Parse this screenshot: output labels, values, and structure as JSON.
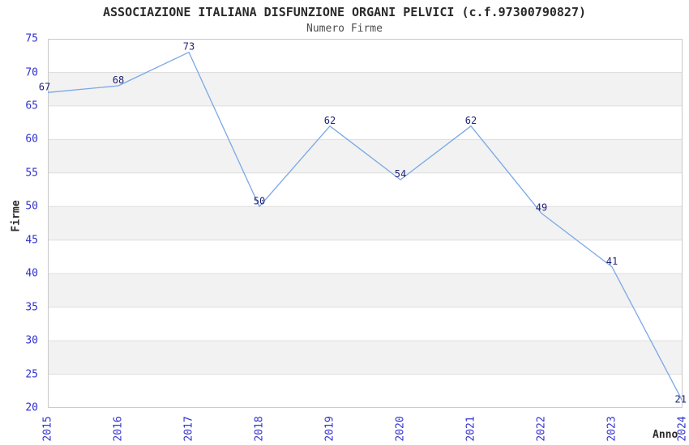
{
  "chart_data": {
    "type": "line",
    "title": "ASSOCIAZIONE ITALIANA DISFUNZIONE ORGANI PELVICI (c.f.97300790827)",
    "subtitle": "Numero Firme",
    "xlabel": "Anno",
    "ylabel": "Firme",
    "categories": [
      "2015",
      "2016",
      "2017",
      "2018",
      "2019",
      "2020",
      "2021",
      "2022",
      "2023",
      "2024"
    ],
    "values": [
      67,
      68,
      73,
      50,
      62,
      54,
      62,
      49,
      41,
      21
    ],
    "ylim": [
      20,
      75
    ],
    "ytick_step": 5,
    "yticks": [
      75,
      70,
      65,
      60,
      55,
      50,
      45,
      40,
      35,
      30,
      25,
      20
    ],
    "grid": true,
    "band_pattern": "alternating-horizontal-stripes",
    "legend": "none",
    "colors": {
      "line": "#7aa8e4",
      "y_tick_label": "#3232cf",
      "x_tick_label": "#3232cf",
      "data_label": "#222277",
      "band": "#f2f2f2",
      "gridline": "#dedede",
      "plot_border": "#c9c9c9",
      "title": "#2a2a2a",
      "subtitle": "#4d4d4d",
      "axis_title": "#2a2a2a",
      "background": "#ffffff"
    }
  }
}
